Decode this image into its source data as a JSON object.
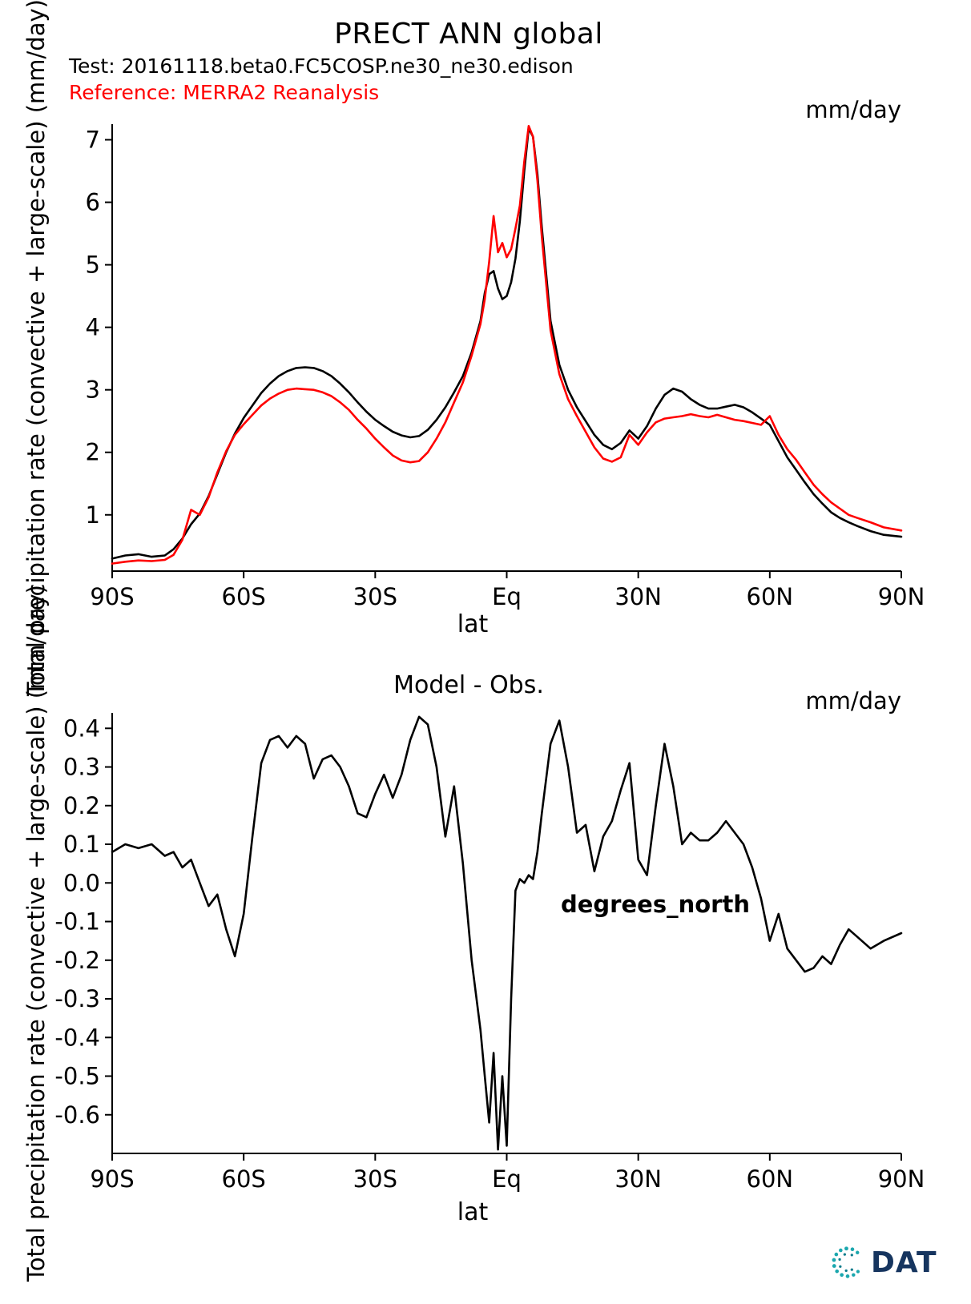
{
  "header": {
    "title": "PRECT ANN global",
    "test": "Test: 20161118.beta0.FC5COSP.ne30_ne30.edison",
    "reference": "Reference: MERRA2 Reanalysis",
    "test_color": "#000000",
    "reference_color": "#ff0000"
  },
  "footer": {
    "logo_icon": "cdat-dotted-c-icon",
    "logo_text": "DAT"
  },
  "chart_data": [
    {
      "type": "line",
      "title": "PRECT ANN global",
      "units_label": "mm/day",
      "xlabel": "lat",
      "ylabel": "Total precipitation rate (convective + large-scale) (mm/day)",
      "legend_position": "top-left-header",
      "grid": false,
      "xlim": [
        -90,
        90
      ],
      "ylim": [
        0.1,
        7.25
      ],
      "xticks": [
        {
          "v": -90,
          "label": "90S"
        },
        {
          "v": -60,
          "label": "60S"
        },
        {
          "v": -30,
          "label": "30S"
        },
        {
          "v": 0,
          "label": "Eq"
        },
        {
          "v": 30,
          "label": "30N"
        },
        {
          "v": 60,
          "label": "60N"
        },
        {
          "v": 90,
          "label": "90N"
        }
      ],
      "yticks": [
        {
          "v": 1,
          "label": "1"
        },
        {
          "v": 2,
          "label": "2"
        },
        {
          "v": 3,
          "label": "3"
        },
        {
          "v": 4,
          "label": "4"
        },
        {
          "v": 5,
          "label": "5"
        },
        {
          "v": 6,
          "label": "6"
        },
        {
          "v": 7,
          "label": "7"
        }
      ],
      "x": [
        -90,
        -87,
        -84,
        -81,
        -78,
        -76,
        -74,
        -72,
        -70,
        -68,
        -66,
        -64,
        -62,
        -60,
        -58,
        -56,
        -54,
        -52,
        -50,
        -48,
        -46,
        -44,
        -42,
        -40,
        -38,
        -36,
        -34,
        -32,
        -30,
        -28,
        -26,
        -24,
        -22,
        -20,
        -18,
        -16,
        -14,
        -12,
        -10,
        -8,
        -6,
        -5,
        -4,
        -3,
        -2,
        -1,
        0,
        1,
        2,
        3,
        4,
        5,
        6,
        7,
        8,
        10,
        12,
        14,
        16,
        18,
        20,
        22,
        24,
        26,
        28,
        30,
        32,
        34,
        36,
        38,
        40,
        42,
        44,
        46,
        48,
        50,
        52,
        54,
        56,
        58,
        60,
        62,
        64,
        66,
        68,
        70,
        72,
        74,
        76,
        78,
        80,
        83,
        86,
        90
      ],
      "series": [
        {
          "name": "Test: 20161118.beta0.FC5COSP.ne30_ne30.edison",
          "color": "#000000",
          "values": [
            0.3,
            0.35,
            0.37,
            0.33,
            0.35,
            0.45,
            0.62,
            0.85,
            1.02,
            1.3,
            1.65,
            2.0,
            2.3,
            2.55,
            2.75,
            2.95,
            3.1,
            3.22,
            3.3,
            3.35,
            3.36,
            3.35,
            3.3,
            3.22,
            3.1,
            2.96,
            2.8,
            2.65,
            2.52,
            2.42,
            2.33,
            2.27,
            2.24,
            2.26,
            2.36,
            2.52,
            2.72,
            2.96,
            3.22,
            3.6,
            4.1,
            4.55,
            4.85,
            4.9,
            4.62,
            4.45,
            4.5,
            4.72,
            5.1,
            5.7,
            6.5,
            7.18,
            7.05,
            6.45,
            5.6,
            4.1,
            3.4,
            3.0,
            2.72,
            2.5,
            2.28,
            2.12,
            2.05,
            2.15,
            2.35,
            2.22,
            2.42,
            2.7,
            2.92,
            3.02,
            2.97,
            2.85,
            2.76,
            2.7,
            2.7,
            2.73,
            2.76,
            2.72,
            2.64,
            2.54,
            2.44,
            2.18,
            1.92,
            1.72,
            1.52,
            1.33,
            1.18,
            1.04,
            0.95,
            0.88,
            0.82,
            0.74,
            0.68,
            0.65
          ]
        },
        {
          "name": "Reference: MERRA2 Reanalysis",
          "color": "#ff0000",
          "values": [
            0.22,
            0.25,
            0.27,
            0.26,
            0.28,
            0.36,
            0.6,
            1.08,
            1.0,
            1.28,
            1.68,
            2.02,
            2.28,
            2.45,
            2.6,
            2.75,
            2.86,
            2.94,
            3.0,
            3.02,
            3.01,
            3.0,
            2.96,
            2.9,
            2.8,
            2.68,
            2.52,
            2.38,
            2.22,
            2.08,
            1.95,
            1.87,
            1.84,
            1.86,
            2.0,
            2.22,
            2.48,
            2.8,
            3.12,
            3.55,
            4.05,
            4.45,
            5.05,
            5.78,
            5.2,
            5.35,
            5.12,
            5.25,
            5.58,
            5.95,
            6.65,
            7.22,
            7.05,
            6.35,
            5.45,
            3.95,
            3.25,
            2.85,
            2.58,
            2.33,
            2.08,
            1.9,
            1.85,
            1.92,
            2.28,
            2.12,
            2.32,
            2.48,
            2.54,
            2.56,
            2.58,
            2.61,
            2.58,
            2.56,
            2.6,
            2.56,
            2.52,
            2.5,
            2.47,
            2.44,
            2.58,
            2.28,
            2.05,
            1.88,
            1.68,
            1.48,
            1.33,
            1.2,
            1.1,
            1.0,
            0.95,
            0.88,
            0.8,
            0.75
          ]
        }
      ]
    },
    {
      "type": "line",
      "title": "Model - Obs.",
      "units_label": "mm/day",
      "xlabel": "lat",
      "ylabel": "Total precipitation rate (convective + large-scale) (mm/day)",
      "annotation": "degrees_north",
      "grid": false,
      "xlim": [
        -90,
        90
      ],
      "ylim": [
        -0.7,
        0.44
      ],
      "xticks": [
        {
          "v": -90,
          "label": "90S"
        },
        {
          "v": -60,
          "label": "60S"
        },
        {
          "v": -30,
          "label": "30S"
        },
        {
          "v": 0,
          "label": "Eq"
        },
        {
          "v": 30,
          "label": "30N"
        },
        {
          "v": 60,
          "label": "60N"
        },
        {
          "v": 90,
          "label": "90N"
        }
      ],
      "yticks": [
        {
          "v": 0.4,
          "label": "0.4"
        },
        {
          "v": 0.3,
          "label": "0.3"
        },
        {
          "v": 0.2,
          "label": "0.2"
        },
        {
          "v": 0.1,
          "label": "0.1"
        },
        {
          "v": 0.0,
          "label": "0.0"
        },
        {
          "v": -0.1,
          "label": "-0.1"
        },
        {
          "v": -0.2,
          "label": "-0.2"
        },
        {
          "v": -0.3,
          "label": "-0.3"
        },
        {
          "v": -0.4,
          "label": "-0.4"
        },
        {
          "v": -0.5,
          "label": "-0.5"
        },
        {
          "v": -0.6,
          "label": "-0.6"
        }
      ],
      "x": [
        -90,
        -87,
        -84,
        -81,
        -78,
        -76,
        -74,
        -72,
        -70,
        -68,
        -66,
        -64,
        -62,
        -60,
        -58,
        -56,
        -54,
        -52,
        -50,
        -48,
        -46,
        -44,
        -42,
        -40,
        -38,
        -36,
        -34,
        -32,
        -30,
        -28,
        -26,
        -24,
        -22,
        -20,
        -18,
        -16,
        -14,
        -12,
        -10,
        -8,
        -6,
        -5,
        -4,
        -3,
        -2,
        -1,
        0,
        1,
        2,
        3,
        4,
        5,
        6,
        7,
        8,
        10,
        12,
        14,
        16,
        18,
        20,
        22,
        24,
        26,
        28,
        30,
        32,
        34,
        36,
        38,
        40,
        42,
        44,
        46,
        48,
        50,
        52,
        54,
        56,
        58,
        60,
        62,
        64,
        66,
        68,
        70,
        72,
        74,
        76,
        78,
        80,
        83,
        86,
        90
      ],
      "series": [
        {
          "name": "Model - Obs.",
          "color": "#000000",
          "values": [
            0.08,
            0.1,
            0.09,
            0.1,
            0.07,
            0.08,
            0.04,
            0.06,
            0.0,
            -0.06,
            -0.03,
            -0.12,
            -0.19,
            -0.08,
            0.12,
            0.31,
            0.37,
            0.38,
            0.35,
            0.38,
            0.36,
            0.27,
            0.32,
            0.33,
            0.3,
            0.25,
            0.18,
            0.17,
            0.23,
            0.28,
            0.22,
            0.28,
            0.37,
            0.43,
            0.41,
            0.3,
            0.12,
            0.25,
            0.05,
            -0.2,
            -0.38,
            -0.5,
            -0.62,
            -0.44,
            -0.69,
            -0.5,
            -0.68,
            -0.3,
            -0.02,
            0.01,
            0.0,
            0.02,
            0.01,
            0.08,
            0.18,
            0.36,
            0.42,
            0.3,
            0.13,
            0.15,
            0.03,
            0.12,
            0.16,
            0.24,
            0.31,
            0.06,
            0.02,
            0.2,
            0.36,
            0.25,
            0.1,
            0.13,
            0.11,
            0.11,
            0.13,
            0.16,
            0.13,
            0.1,
            0.04,
            -0.04,
            -0.15,
            -0.08,
            -0.17,
            -0.2,
            -0.23,
            -0.22,
            -0.19,
            -0.21,
            -0.16,
            -0.12,
            -0.14,
            -0.17,
            -0.15,
            -0.13
          ]
        }
      ]
    }
  ]
}
